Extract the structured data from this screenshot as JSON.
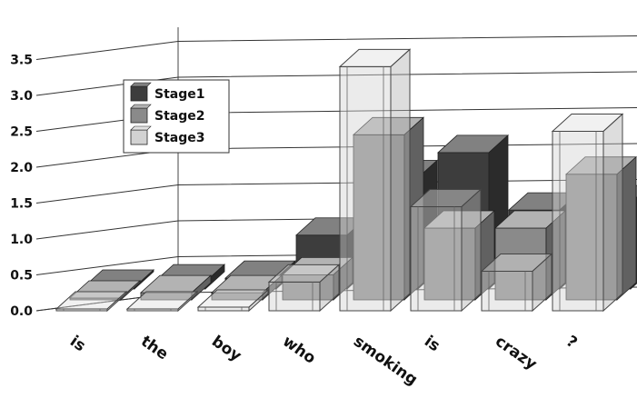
{
  "chart_data": {
    "type": "bar",
    "categories": [
      "is",
      "the",
      "boy",
      "who",
      "smoking",
      "is",
      "crazy",
      "?"
    ],
    "series": [
      {
        "name": "Stage1",
        "values": [
          0.0,
          0.1,
          0.15,
          0.75,
          1.55,
          1.9,
          1.1,
          1.2
        ],
        "color": "#3d3d3d"
      },
      {
        "name": "Stage2",
        "values": [
          0.0,
          0.1,
          0.1,
          0.35,
          2.3,
          1.0,
          1.0,
          1.75
        ],
        "color": "#8a8a8a"
      },
      {
        "name": "Stage3",
        "values": [
          0.0,
          0.02,
          0.05,
          0.4,
          3.4,
          1.45,
          0.55,
          2.5
        ],
        "color": "#d2d2d2"
      }
    ],
    "yticks": [
      "0.0",
      "0.5",
      "1.0",
      "1.5",
      "2.0",
      "2.5",
      "3.0",
      "3.5"
    ],
    "ylim": [
      0,
      3.5
    ],
    "title": "",
    "xlabel": "",
    "ylabel": "",
    "grid": true,
    "legend": "left"
  }
}
